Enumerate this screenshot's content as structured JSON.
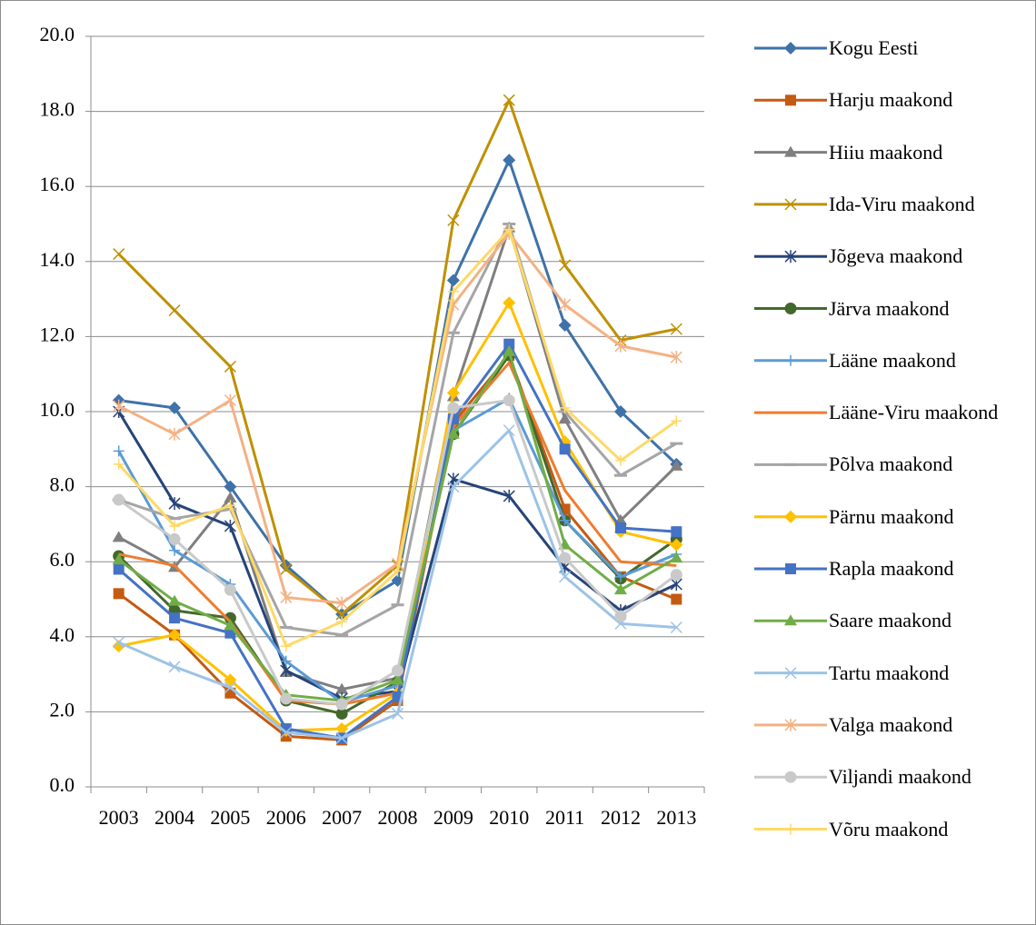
{
  "chart_data": {
    "type": "line",
    "categories": [
      "2003",
      "2004",
      "2005",
      "2006",
      "2007",
      "2008",
      "2009",
      "2010",
      "2011",
      "2012",
      "2013"
    ],
    "ylim": [
      0,
      20
    ],
    "yticks": [
      {
        "value": 0,
        "label": "0.0"
      },
      {
        "value": 2,
        "label": "2.0"
      },
      {
        "value": 4,
        "label": "4.0"
      },
      {
        "value": 6,
        "label": "6.0"
      },
      {
        "value": 8,
        "label": "8.0"
      },
      {
        "value": 10,
        "label": "10.0"
      },
      {
        "value": 12,
        "label": "12.0"
      },
      {
        "value": 14,
        "label": "14.0"
      },
      {
        "value": 16,
        "label": "16.0"
      },
      {
        "value": 18,
        "label": "18.0"
      },
      {
        "value": 20,
        "label": "20.0"
      }
    ],
    "grid": true,
    "legend": "right",
    "series": [
      {
        "name": "Kogu Eesti",
        "color": "#3e72a8",
        "marker": "diamond",
        "values": [
          10.3,
          10.1,
          8.0,
          5.9,
          4.6,
          5.5,
          13.5,
          16.7,
          12.3,
          10.0,
          8.6
        ]
      },
      {
        "name": "Harju maakond",
        "color": "#c55a11",
        "marker": "square",
        "values": [
          5.15,
          4.05,
          2.5,
          1.35,
          1.25,
          2.3,
          9.7,
          11.5,
          7.4,
          5.6,
          5.0
        ]
      },
      {
        "name": "Hiiu maakond",
        "color": "#7f7f7f",
        "marker": "triangle",
        "values": [
          6.65,
          5.85,
          7.7,
          3.05,
          2.6,
          2.9,
          10.4,
          14.9,
          9.8,
          7.1,
          8.55
        ]
      },
      {
        "name": "Ida-Viru maakond",
        "color": "#bf9000",
        "marker": "x",
        "values": [
          14.2,
          12.7,
          11.2,
          5.8,
          4.6,
          5.9,
          15.1,
          18.3,
          13.9,
          11.9,
          12.2
        ]
      },
      {
        "name": "Jõgeva maakond",
        "color": "#264478",
        "marker": "star",
        "values": [
          10.0,
          7.55,
          6.95,
          3.1,
          2.35,
          2.55,
          8.2,
          7.75,
          5.85,
          4.7,
          5.4
        ]
      },
      {
        "name": "Järva maakond",
        "color": "#43682b",
        "marker": "circle",
        "values": [
          6.15,
          4.7,
          4.5,
          2.3,
          1.95,
          2.8,
          9.4,
          11.5,
          7.1,
          5.55,
          6.6
        ]
      },
      {
        "name": "Lääne maakond",
        "color": "#5b9bd5",
        "marker": "plus",
        "values": [
          8.95,
          6.3,
          5.4,
          3.35,
          2.25,
          2.7,
          9.5,
          10.35,
          7.1,
          5.6,
          6.2
        ]
      },
      {
        "name": "Lääne-Viru maakond",
        "color": "#ed7d31",
        "marker": "none",
        "values": [
          6.2,
          5.9,
          4.4,
          2.3,
          2.2,
          2.5,
          9.6,
          11.3,
          7.9,
          6.0,
          5.9
        ]
      },
      {
        "name": "Põlva maakond",
        "color": "#a5a5a5",
        "marker": "dash",
        "values": [
          7.65,
          7.15,
          7.4,
          4.25,
          4.05,
          4.85,
          12.1,
          15.0,
          10.0,
          8.3,
          9.15
        ]
      },
      {
        "name": "Pärnu maakond",
        "color": "#ffc000",
        "marker": "diamond",
        "values": [
          3.75,
          4.05,
          2.85,
          1.5,
          1.55,
          2.5,
          10.5,
          12.9,
          9.2,
          6.8,
          6.45
        ]
      },
      {
        "name": "Rapla maakond",
        "color": "#4472c4",
        "marker": "square",
        "values": [
          5.8,
          4.5,
          4.1,
          1.55,
          1.3,
          2.4,
          9.8,
          11.8,
          9.0,
          6.9,
          6.8
        ]
      },
      {
        "name": "Saare maakond",
        "color": "#70ad47",
        "marker": "triangle",
        "values": [
          6.05,
          4.95,
          4.3,
          2.45,
          2.3,
          2.85,
          9.4,
          11.6,
          6.45,
          5.25,
          6.1
        ]
      },
      {
        "name": "Tartu maakond",
        "color": "#9dc3e6",
        "marker": "x",
        "values": [
          3.85,
          3.2,
          2.65,
          1.45,
          1.3,
          1.95,
          8.0,
          9.5,
          5.6,
          4.35,
          4.25
        ]
      },
      {
        "name": "Valga maakond",
        "color": "#f4b183",
        "marker": "star",
        "values": [
          10.15,
          9.4,
          10.3,
          5.05,
          4.9,
          5.95,
          12.85,
          14.75,
          12.85,
          11.75,
          11.45
        ]
      },
      {
        "name": "Viljandi maakond",
        "color": "#c9c9c9",
        "marker": "circle",
        "values": [
          7.65,
          6.6,
          5.25,
          2.35,
          2.2,
          3.1,
          10.1,
          10.3,
          6.1,
          4.55,
          5.65
        ]
      },
      {
        "name": "Võru maakond",
        "color": "#ffd966",
        "marker": "plus",
        "values": [
          8.6,
          6.95,
          7.5,
          3.75,
          4.4,
          5.75,
          13.2,
          14.85,
          10.1,
          8.7,
          9.75
        ]
      }
    ]
  }
}
